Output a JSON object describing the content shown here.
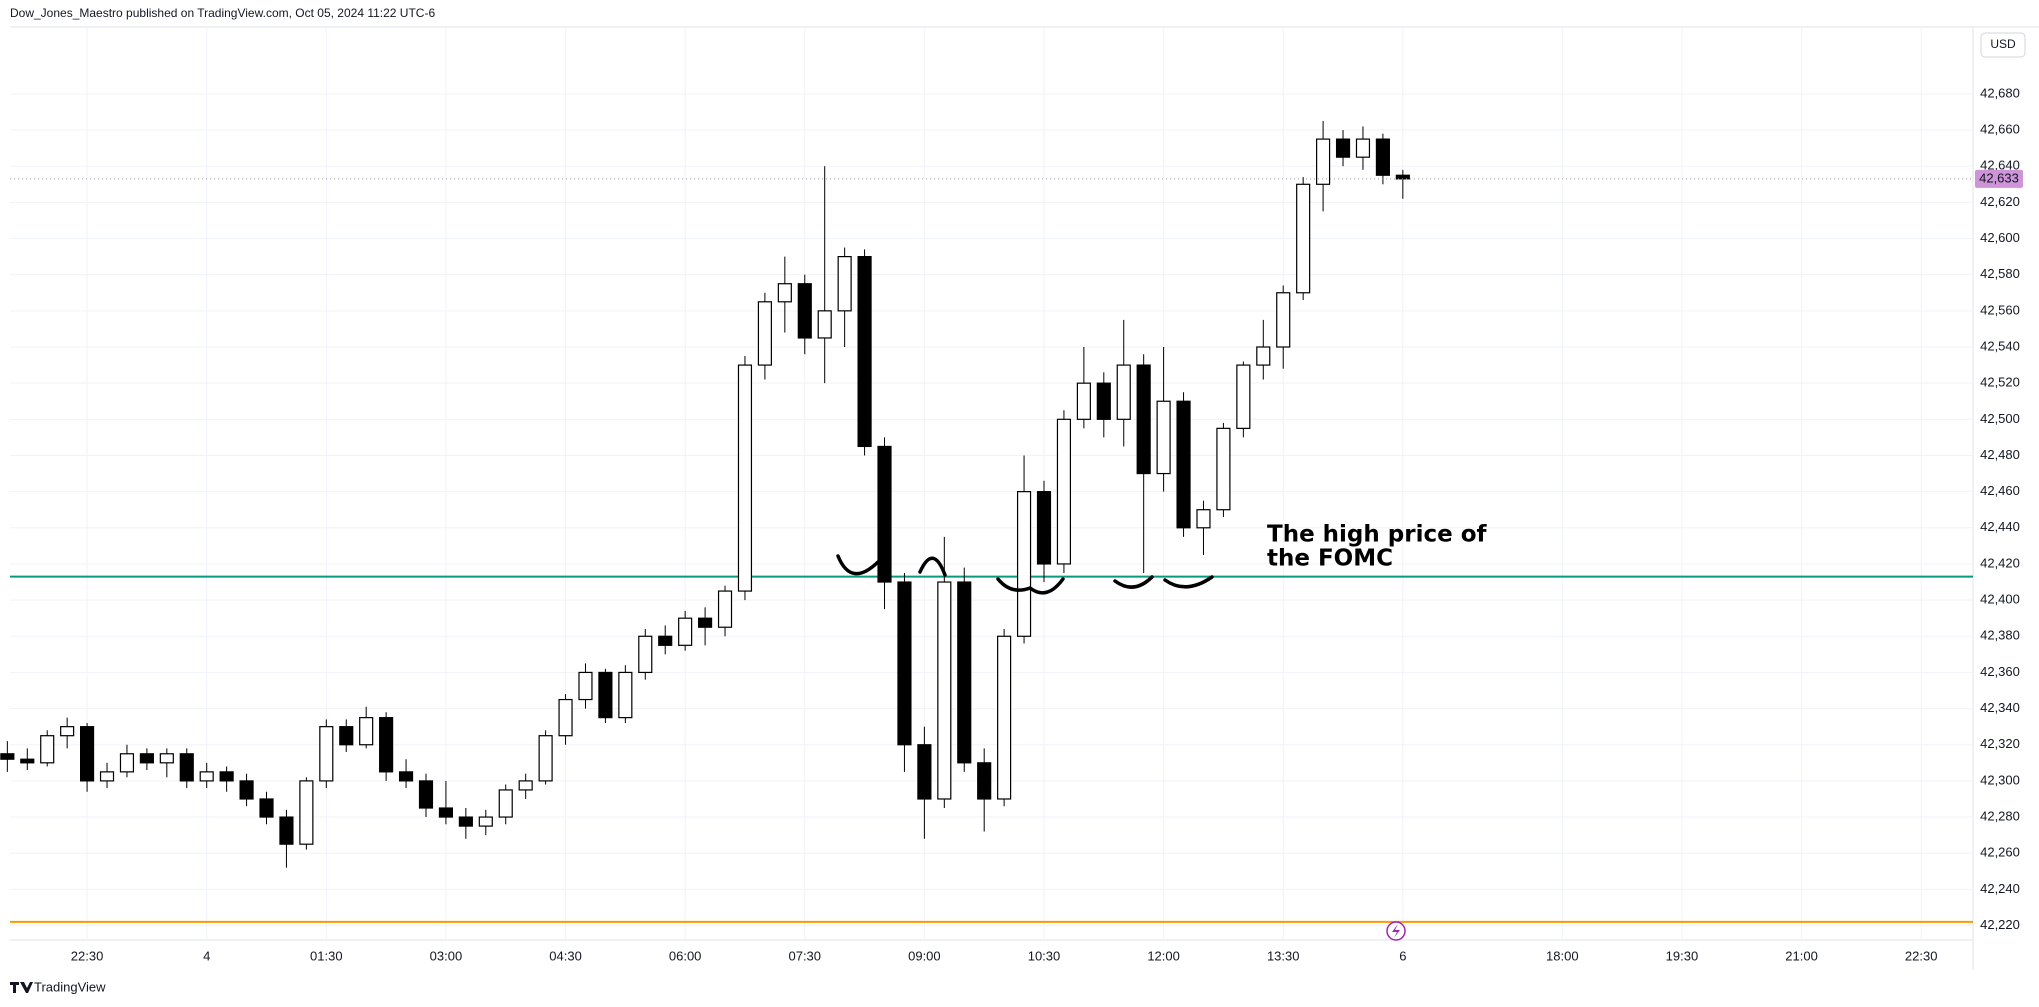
{
  "header": "Dow_Jones_Maestro published on TradingView.com, Oct 05, 2024 11:22 UTC-6",
  "footer": "TradingView",
  "chart_data": {
    "type": "candlestick",
    "currency": "USD",
    "up_color": "#ffffff",
    "down_color": "#000000",
    "x": [
      -150,
      -135,
      -120,
      -105,
      -90,
      -75,
      -60,
      -45,
      -30,
      -15,
      0,
      15,
      30,
      45,
      60,
      75,
      90,
      105,
      120,
      135,
      150,
      165,
      180,
      195,
      210,
      225,
      240,
      255,
      270,
      285,
      300,
      315,
      330,
      345,
      360,
      375,
      390,
      405,
      420,
      435,
      450,
      465,
      480,
      495,
      510,
      525,
      540,
      555,
      570,
      585,
      600,
      615,
      630,
      645,
      660,
      675,
      690,
      705,
      720,
      735,
      750,
      765,
      780,
      795,
      810,
      825,
      840,
      855,
      870,
      885,
      900
    ],
    "ohlc": [
      [
        42315,
        42322,
        42305,
        42312
      ],
      [
        42312,
        42318,
        42306,
        42310
      ],
      [
        42310,
        42328,
        42308,
        42325
      ],
      [
        42325,
        42335,
        42318,
        42330
      ],
      [
        42330,
        42332,
        42294,
        42300
      ],
      [
        42300,
        42310,
        42296,
        42305
      ],
      [
        42305,
        42320,
        42302,
        42315
      ],
      [
        42315,
        42318,
        42306,
        42310
      ],
      [
        42310,
        42318,
        42302,
        42315
      ],
      [
        42315,
        42318,
        42296,
        42300
      ],
      [
        42300,
        42310,
        42296,
        42305
      ],
      [
        42305,
        42308,
        42294,
        42300
      ],
      [
        42300,
        42304,
        42286,
        42290
      ],
      [
        42290,
        42294,
        42276,
        42280
      ],
      [
        42280,
        42284,
        42252,
        42265
      ],
      [
        42265,
        42302,
        42262,
        42300
      ],
      [
        42300,
        42334,
        42296,
        42330
      ],
      [
        42330,
        42334,
        42316,
        42320
      ],
      [
        42320,
        42341,
        42318,
        42335
      ],
      [
        42335,
        42338,
        42300,
        42305
      ],
      [
        42305,
        42312,
        42296,
        42300
      ],
      [
        42300,
        42304,
        42280,
        42285
      ],
      [
        42285,
        42300,
        42276,
        42280
      ],
      [
        42280,
        42285,
        42268,
        42275
      ],
      [
        42275,
        42284,
        42270,
        42280
      ],
      [
        42280,
        42298,
        42276,
        42295
      ],
      [
        42295,
        42304,
        42290,
        42300
      ],
      [
        42300,
        42328,
        42298,
        42325
      ],
      [
        42325,
        42348,
        42320,
        42345
      ],
      [
        42345,
        42365,
        42340,
        42360
      ],
      [
        42360,
        42362,
        42332,
        42335
      ],
      [
        42335,
        42364,
        42332,
        42360
      ],
      [
        42360,
        42384,
        42356,
        42380
      ],
      [
        42380,
        42386,
        42370,
        42375
      ],
      [
        42375,
        42394,
        42372,
        42390
      ],
      [
        42390,
        42396,
        42375,
        42385
      ],
      [
        42385,
        42408,
        42380,
        42405
      ],
      [
        42405,
        42535,
        42400,
        42530
      ],
      [
        42530,
        42570,
        42522,
        42565
      ],
      [
        42565,
        42590,
        42548,
        42575
      ],
      [
        42575,
        42580,
        42536,
        42545
      ],
      [
        42545,
        42640,
        42520,
        42560
      ],
      [
        42560,
        42595,
        42540,
        42590
      ],
      [
        42590,
        42594,
        42480,
        42485
      ],
      [
        42485,
        42490,
        42395,
        42410
      ],
      [
        42410,
        42415,
        42305,
        42320
      ],
      [
        42320,
        42330,
        42268,
        42290
      ],
      [
        42290,
        42435,
        42285,
        42410
      ],
      [
        42410,
        42418,
        42305,
        42310
      ],
      [
        42310,
        42318,
        42272,
        42290
      ],
      [
        42290,
        42384,
        42286,
        42380
      ],
      [
        42380,
        42480,
        42376,
        42460
      ],
      [
        42460,
        42466,
        42410,
        42420
      ],
      [
        42420,
        42505,
        42415,
        42500
      ],
      [
        42500,
        42540,
        42495,
        42520
      ],
      [
        42520,
        42526,
        42490,
        42500
      ],
      [
        42500,
        42555,
        42485,
        42530
      ],
      [
        42530,
        42536,
        42415,
        42470
      ],
      [
        42470,
        42540,
        42460,
        42510
      ],
      [
        42510,
        42515,
        42435,
        42440
      ],
      [
        42440,
        42455,
        42425,
        42450
      ],
      [
        42450,
        42498,
        42446,
        42495
      ],
      [
        42495,
        42532,
        42490,
        42530
      ],
      [
        42530,
        42555,
        42522,
        42540
      ],
      [
        42540,
        42574,
        42528,
        42570
      ],
      [
        42570,
        42634,
        42566,
        42630
      ],
      [
        42630,
        42665,
        42615,
        42655
      ],
      [
        42655,
        42660,
        42640,
        42645
      ],
      [
        42645,
        42662,
        42638,
        42655
      ],
      [
        42655,
        42658,
        42630,
        42635
      ],
      [
        42635,
        42638,
        42622,
        42633
      ]
    ],
    "xlim": [
      -148,
      1329
    ],
    "xticks": [
      {
        "value": -90,
        "label": "22:30"
      },
      {
        "value": 0,
        "label": "4"
      },
      {
        "value": 90,
        "label": "01:30"
      },
      {
        "value": 180,
        "label": "03:00"
      },
      {
        "value": 270,
        "label": "04:30"
      },
      {
        "value": 360,
        "label": "06:00"
      },
      {
        "value": 450,
        "label": "07:30"
      },
      {
        "value": 540,
        "label": "09:00"
      },
      {
        "value": 630,
        "label": "10:30"
      },
      {
        "value": 720,
        "label": "12:00"
      },
      {
        "value": 810,
        "label": "13:30"
      },
      {
        "value": 900,
        "label": "6"
      },
      {
        "value": 1020,
        "label": "18:00"
      },
      {
        "value": 1110,
        "label": "19:30"
      },
      {
        "value": 1200,
        "label": "21:00"
      },
      {
        "value": 1290,
        "label": "22:30"
      }
    ],
    "ylim": [
      42212,
      42717
    ],
    "yticks": [
      {
        "value": 42220,
        "label": "42,220"
      },
      {
        "value": 42240,
        "label": "42,240"
      },
      {
        "value": 42260,
        "label": "42,260"
      },
      {
        "value": 42280,
        "label": "42,280"
      },
      {
        "value": 42300,
        "label": "42,300"
      },
      {
        "value": 42320,
        "label": "42,320"
      },
      {
        "value": 42340,
        "label": "42,340"
      },
      {
        "value": 42360,
        "label": "42,360"
      },
      {
        "value": 42380,
        "label": "42,380"
      },
      {
        "value": 42400,
        "label": "42,400"
      },
      {
        "value": 42420,
        "label": "42,420"
      },
      {
        "value": 42440,
        "label": "42,440"
      },
      {
        "value": 42460,
        "label": "42,460"
      },
      {
        "value": 42480,
        "label": "42,480"
      },
      {
        "value": 42500,
        "label": "42,500"
      },
      {
        "value": 42520,
        "label": "42,520"
      },
      {
        "value": 42540,
        "label": "42,540"
      },
      {
        "value": 42560,
        "label": "42,560"
      },
      {
        "value": 42580,
        "label": "42,580"
      },
      {
        "value": 42600,
        "label": "42,600"
      },
      {
        "value": 42620,
        "label": "42,620"
      },
      {
        "value": 42640,
        "label": "42,640"
      },
      {
        "value": 42660,
        "label": "42,660"
      },
      {
        "value": 42680,
        "label": "42,680"
      }
    ],
    "grid": true,
    "last_price": {
      "value": 42633,
      "label": "42,633",
      "color": "#ce93d8"
    },
    "levels": [
      {
        "value": 42413,
        "color": "#089981"
      },
      {
        "value": 42222,
        "color": "#ff9800"
      }
    ],
    "annotation": [
      "The high price of",
      "the FOMC"
    ]
  }
}
